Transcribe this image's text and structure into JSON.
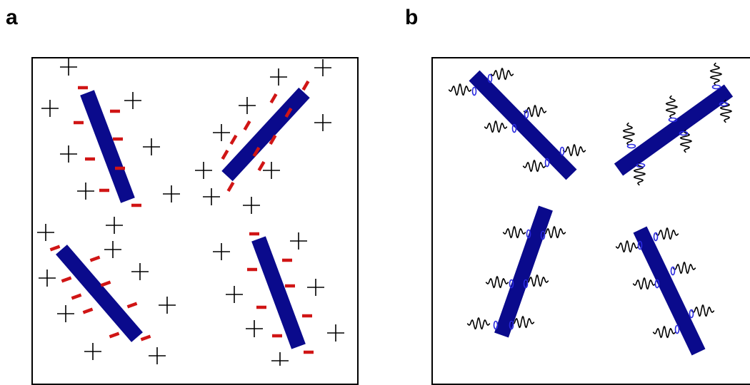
{
  "panels": [
    {
      "label": "a"
    },
    {
      "label": "b"
    }
  ],
  "colors": {
    "rod": "#0a0a8c",
    "charge_negative": "#d01515",
    "charge_positive": "#000000",
    "dipole": "#2a2ae0",
    "wave": "#000000",
    "border": "#000000"
  },
  "icons": {
    "negative_charge": "minus-sign",
    "positive_charge": "plus-sign",
    "wiggle": "fluctuation-wave"
  }
}
